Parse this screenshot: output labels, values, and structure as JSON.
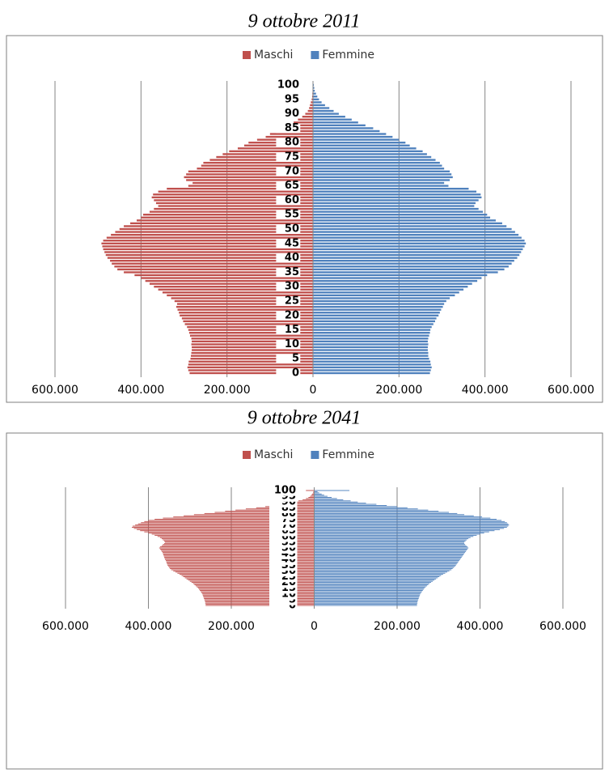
{
  "chart_data": [
    {
      "type": "bar",
      "orientation": "horizontal",
      "title": "9 ottobre 2011",
      "categories": [
        "0",
        null,
        null,
        null,
        null,
        "5",
        null,
        null,
        null,
        null,
        "10",
        null,
        null,
        null,
        null,
        "15",
        null,
        null,
        null,
        null,
        "20",
        null,
        null,
        null,
        null,
        "25",
        null,
        null,
        null,
        null,
        "30",
        null,
        null,
        null,
        null,
        "35",
        null,
        null,
        null,
        null,
        "40",
        null,
        null,
        null,
        null,
        "45",
        null,
        null,
        null,
        null,
        "50",
        null,
        null,
        null,
        null,
        "55",
        null,
        null,
        null,
        null,
        "60",
        null,
        null,
        null,
        null,
        "65",
        null,
        null,
        null,
        null,
        "70",
        null,
        null,
        null,
        null,
        "75",
        null,
        null,
        null,
        null,
        "80",
        null,
        null,
        null,
        null,
        "85",
        null,
        null,
        null,
        null,
        "90",
        null,
        null,
        null,
        null,
        "95",
        null,
        null,
        null,
        null,
        "100"
      ],
      "series": [
        {
          "name": "Maschi",
          "color": "#c0504d",
          "values": [
            -287000,
            -290000,
            -292000,
            -290000,
            -289000,
            -285000,
            -284000,
            -283000,
            -282000,
            -282000,
            -283000,
            -282000,
            -283000,
            -286000,
            -288000,
            -290000,
            -293000,
            -298000,
            -302000,
            -305000,
            -310000,
            -312000,
            -315000,
            -318000,
            -316000,
            -322000,
            -330000,
            -340000,
            -350000,
            -360000,
            -370000,
            -380000,
            -390000,
            -400000,
            -415000,
            -440000,
            -455000,
            -462000,
            -468000,
            -472000,
            -478000,
            -482000,
            -485000,
            -488000,
            -490000,
            -492000,
            -488000,
            -480000,
            -470000,
            -460000,
            -450000,
            -440000,
            -425000,
            -410000,
            -400000,
            -395000,
            -380000,
            -370000,
            -360000,
            -365000,
            -370000,
            -375000,
            -372000,
            -360000,
            -340000,
            -290000,
            -280000,
            -295000,
            -300000,
            -295000,
            -290000,
            -270000,
            -260000,
            -255000,
            -240000,
            -225000,
            -210000,
            -195000,
            -175000,
            -160000,
            -150000,
            -130000,
            -110000,
            -100000,
            -85000,
            -70000,
            -55000,
            -45000,
            -35000,
            -25000,
            -18000,
            -12000,
            -9000,
            -7000,
            -5000,
            -3000,
            -2000,
            -1500,
            -1000,
            -700,
            -500
          ]
        },
        {
          "name": "Femmine",
          "color": "#4f81bd",
          "values": [
            272000,
            274000,
            276000,
            274000,
            273000,
            270000,
            268000,
            268000,
            267000,
            267000,
            268000,
            267000,
            268000,
            270000,
            272000,
            273000,
            276000,
            280000,
            284000,
            287000,
            292000,
            295000,
            298000,
            302000,
            305000,
            310000,
            318000,
            330000,
            340000,
            350000,
            360000,
            370000,
            382000,
            392000,
            405000,
            430000,
            445000,
            455000,
            462000,
            468000,
            475000,
            480000,
            484000,
            488000,
            492000,
            495000,
            492000,
            485000,
            478000,
            470000,
            462000,
            450000,
            440000,
            425000,
            412000,
            405000,
            395000,
            385000,
            375000,
            378000,
            385000,
            392000,
            390000,
            380000,
            362000,
            315000,
            305000,
            318000,
            325000,
            322000,
            318000,
            305000,
            300000,
            295000,
            285000,
            275000,
            265000,
            255000,
            240000,
            225000,
            215000,
            200000,
            185000,
            170000,
            155000,
            140000,
            122000,
            105000,
            90000,
            75000,
            60000,
            48000,
            38000,
            28000,
            20000,
            14000,
            10000,
            7000,
            4000,
            3000,
            2000
          ]
        }
      ],
      "xlim": [
        -600000,
        600000
      ],
      "xticks": [
        {
          "value": -600000,
          "label": "600.000"
        },
        {
          "value": -400000,
          "label": "400.000"
        },
        {
          "value": -200000,
          "label": "200.000"
        },
        0,
        {
          "value": 200000,
          "label": "200.000"
        },
        {
          "value": 400000,
          "label": "400.000"
        },
        {
          "value": 600000,
          "label": "600.000"
        }
      ],
      "negative_tick_color": "#ff0000",
      "grid": true,
      "legend": "top"
    },
    {
      "type": "bar",
      "orientation": "horizontal",
      "title": "9 ottobre 2041",
      "categories": [
        "0",
        null,
        null,
        null,
        null,
        "5",
        null,
        null,
        null,
        null,
        "10",
        null,
        null,
        null,
        null,
        "15",
        null,
        null,
        null,
        null,
        "20",
        null,
        null,
        null,
        null,
        "25",
        null,
        null,
        null,
        null,
        "30",
        null,
        null,
        null,
        null,
        "35",
        null,
        null,
        null,
        null,
        "40",
        null,
        null,
        null,
        null,
        "45",
        null,
        null,
        null,
        null,
        "50",
        null,
        null,
        null,
        null,
        "55",
        null,
        null,
        null,
        null,
        "60",
        null,
        null,
        null,
        null,
        "65",
        null,
        null,
        null,
        null,
        "70",
        null,
        null,
        null,
        null,
        "75",
        null,
        null,
        null,
        null,
        "80",
        null,
        null,
        null,
        null,
        "85",
        null,
        null,
        null,
        null,
        "90",
        null,
        null,
        null,
        null,
        "95",
        null,
        null,
        null,
        null,
        "100"
      ],
      "series": [
        {
          "name": "Maschi",
          "color": "#c0504d",
          "values": [
            -262000,
            -262000,
            -263000,
            -263000,
            -264000,
            -265000,
            -266000,
            -267000,
            -268000,
            -269000,
            -270000,
            -272000,
            -274000,
            -276000,
            -278000,
            -280000,
            -283000,
            -286000,
            -289000,
            -292000,
            -296000,
            -300000,
            -304000,
            -308000,
            -312000,
            -316000,
            -320000,
            -325000,
            -330000,
            -335000,
            -340000,
            -345000,
            -348000,
            -350000,
            -352000,
            -354000,
            -355000,
            -356000,
            -357000,
            -358000,
            -360000,
            -361000,
            -362000,
            -363000,
            -364000,
            -365000,
            -366000,
            -368000,
            -370000,
            -372000,
            -374000,
            -372000,
            -368000,
            -365000,
            -362000,
            -360000,
            -362000,
            -365000,
            -368000,
            -372000,
            -378000,
            -385000,
            -392000,
            -400000,
            -410000,
            -420000,
            -428000,
            -435000,
            -440000,
            -438000,
            -432000,
            -425000,
            -418000,
            -410000,
            -400000,
            -385000,
            -365000,
            -340000,
            -315000,
            -290000,
            -265000,
            -240000,
            -215000,
            -190000,
            -165000,
            -140000,
            -118000,
            -98000,
            -80000,
            -64000,
            -50000,
            -38000,
            -28000,
            -20000,
            -14000,
            -10000,
            -7000,
            -5000,
            -3000,
            -2000,
            -20000
          ]
        },
        {
          "name": "Femmine",
          "color": "#4f81bd",
          "values": [
            248000,
            248000,
            249000,
            249000,
            250000,
            251000,
            252000,
            253000,
            254000,
            255000,
            256000,
            258000,
            260000,
            262000,
            264000,
            266000,
            269000,
            272000,
            275000,
            278000,
            282000,
            286000,
            290000,
            294000,
            298000,
            302000,
            306000,
            311000,
            316000,
            321000,
            326000,
            331000,
            334000,
            337000,
            340000,
            342000,
            344000,
            346000,
            348000,
            350000,
            352000,
            354000,
            356000,
            358000,
            360000,
            362000,
            364000,
            366000,
            368000,
            370000,
            372000,
            370000,
            367000,
            364000,
            362000,
            362000,
            365000,
            368000,
            372000,
            377000,
            384000,
            392000,
            400000,
            410000,
            422000,
            435000,
            448000,
            458000,
            465000,
            468000,
            470000,
            468000,
            465000,
            460000,
            452000,
            440000,
            425000,
            405000,
            385000,
            362000,
            345000,
            325000,
            300000,
            275000,
            250000,
            225000,
            200000,
            175000,
            150000,
            125000,
            105000,
            88000,
            70000,
            55000,
            42000,
            32000,
            24000,
            18000,
            12000,
            8000,
            85000
          ]
        }
      ],
      "xlim": [
        -600000,
        600000
      ],
      "xticks": [
        {
          "value": -600000,
          "label": "600.000"
        },
        {
          "value": -400000,
          "label": "400.000"
        },
        {
          "value": -200000,
          "label": "200.000"
        },
        0,
        {
          "value": 200000,
          "label": "200.000"
        },
        {
          "value": 400000,
          "label": "400.000"
        },
        {
          "value": 600000,
          "label": "600.000"
        }
      ],
      "negative_tick_color": "#ff0000",
      "grid": true,
      "legend": "top"
    }
  ]
}
